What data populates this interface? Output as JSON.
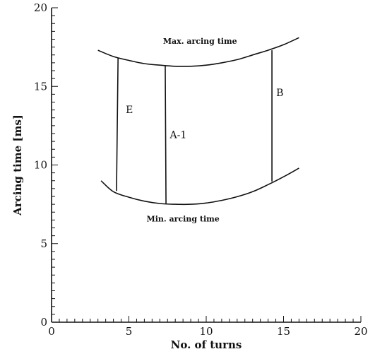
{
  "chart_data": {
    "type": "line",
    "xlabel": "No. of turns",
    "ylabel": "Arcing time [ms]",
    "xlim": [
      0,
      20
    ],
    "ylim": [
      0,
      20
    ],
    "xticks": [
      "0",
      "5",
      "10",
      "15",
      "20"
    ],
    "yticks": [
      "0",
      "5",
      "10",
      "15",
      "20"
    ],
    "grid": false,
    "series": [
      {
        "name": "Max. arcing time",
        "x": [
          3,
          4,
          5,
          6,
          7,
          8,
          9,
          10,
          11,
          12,
          13,
          14,
          15,
          16
        ],
        "y": [
          17.3,
          16.9,
          16.65,
          16.45,
          16.35,
          16.28,
          16.28,
          16.35,
          16.5,
          16.7,
          17.0,
          17.3,
          17.65,
          18.1
        ]
      },
      {
        "name": "Min. arcing time",
        "x": [
          3.2,
          4,
          5,
          6,
          7,
          8,
          9,
          10,
          11,
          12,
          13,
          14,
          15,
          16
        ],
        "y": [
          9.0,
          8.3,
          7.95,
          7.7,
          7.55,
          7.5,
          7.5,
          7.58,
          7.75,
          7.98,
          8.3,
          8.75,
          9.25,
          9.8
        ]
      }
    ],
    "vertical_lines": [
      {
        "label": "E",
        "x_top": 4.3,
        "y_top": 16.8,
        "x_bottom": 4.2,
        "y_bottom": 8.35
      },
      {
        "label": "A-1",
        "x_top": 7.35,
        "y_top": 16.3,
        "x_bottom": 7.4,
        "y_bottom": 7.55
      },
      {
        "label": "B",
        "x_top": 14.25,
        "y_top": 17.3,
        "x_bottom": 14.25,
        "y_bottom": 8.95
      }
    ],
    "annotations": [
      {
        "text": "Max. arcing time",
        "x": 9.6,
        "y": 17.7
      },
      {
        "text": "Min. arcing time",
        "x": 8.5,
        "y": 6.4
      }
    ]
  }
}
